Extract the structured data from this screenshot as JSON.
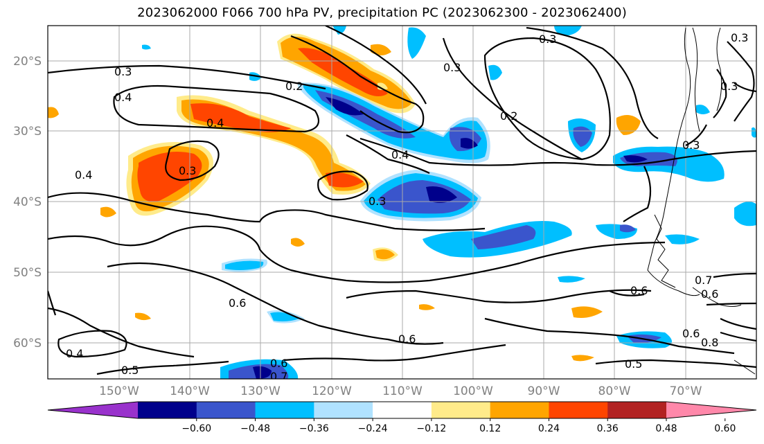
{
  "title": "2023062000 F066 700 hPa PV, precipitation PC (2023062300 - 2023062400)",
  "lat_labels": [
    "20°S",
    "30°S",
    "40°S",
    "50°S",
    "60°S"
  ],
  "lon_labels": [
    "150°W",
    "140°W",
    "130°W",
    "120°W",
    "110°W",
    "100°W",
    "90°W",
    "80°W",
    "70°W"
  ],
  "contour_labels": [
    "0.3",
    "0.4",
    "0.2",
    "0.4",
    "0.3",
    "0.4",
    "0.3",
    "0.3",
    "0.2",
    "0.3",
    "0.4",
    "0.3",
    "0.6",
    "0.6",
    "0.4",
    "0.5",
    "0.6",
    "0.7",
    "0.6",
    "0.6",
    "0.7",
    "0.6",
    "0.8",
    "0.5",
    "0.3",
    "0.3"
  ],
  "colorbar": {
    "ticks": [
      "−0.60",
      "−0.48",
      "−0.36",
      "−0.24",
      "−0.12",
      "0.12",
      "0.24",
      "0.36",
      "0.48",
      "0.60"
    ],
    "colors": [
      "#9932cc",
      "#00008b",
      "#3a55cc",
      "#00bfff",
      "#b0e2ff",
      "#ffffff",
      "#ffeb8a",
      "#ffa500",
      "#ff4500",
      "#b22222",
      "#ff88aa"
    ]
  }
}
